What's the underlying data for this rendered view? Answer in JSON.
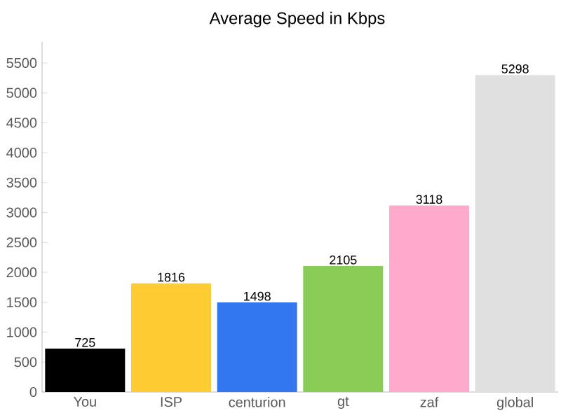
{
  "chart_data": {
    "type": "bar",
    "title": "Average Speed in Kbps",
    "categories": [
      "You",
      "ISP",
      "centurion",
      "gt",
      "zaf",
      "global"
    ],
    "values": [
      725,
      1816,
      1498,
      2105,
      3118,
      5298
    ],
    "colors": [
      "#000000",
      "#ffcc33",
      "#3377ee",
      "#88cc55",
      "#ffaacc",
      "#e0e0e0"
    ],
    "ylim": [
      0,
      5850
    ],
    "yticks": [
      0,
      500,
      1000,
      1500,
      2000,
      2500,
      3000,
      3500,
      4000,
      4500,
      5000,
      5500
    ],
    "data_labels": true
  }
}
